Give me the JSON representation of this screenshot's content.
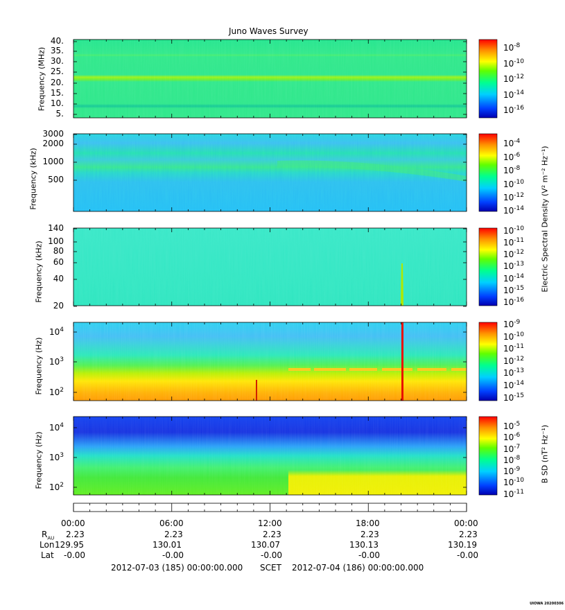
{
  "chart_data": {
    "type": "heatmap",
    "title": "Juno Waves Survey",
    "x_axis": {
      "ticks": [
        "00:00",
        "06:00",
        "12:00",
        "18:00",
        "00:00"
      ],
      "range": [
        "2012-07-03 00:00",
        "2012-07-04 00:00"
      ],
      "ephemeris": [
        {
          "label": "R_AU",
          "values": [
            "2.23",
            "2.23",
            "2.23",
            "2.23",
            "2.23"
          ]
        },
        {
          "label": "Lon",
          "values": [
            "129.95",
            "130.01",
            "130.07",
            "130.13",
            "130.19"
          ]
        },
        {
          "label": "Lat",
          "values": [
            "-0.00",
            "-0.00",
            "-0.00",
            "-0.00",
            "-0.00"
          ]
        }
      ],
      "start": "2012-07-03 (185) 00:00:00.000",
      "scet": "SCET",
      "end": "2012-07-04 (186) 00:00:00.000"
    },
    "panels": [
      {
        "ylabel": "Frequency (MHz)",
        "yticks": [
          "40.",
          "35.",
          "30.",
          "25.",
          "20.",
          "15.",
          "10.",
          "5."
        ],
        "cbar_exponents": [
          "-8",
          "-10",
          "-12",
          "-14",
          "-16"
        ]
      },
      {
        "ylabel": "Frequency (kHz)",
        "yticks": [
          "3000",
          "2000",
          "1000",
          "500"
        ],
        "cbar_exponents": [
          "-4",
          "-6",
          "-8",
          "-10",
          "-12",
          "-14"
        ]
      },
      {
        "ylabel": "Frequency (kHz)",
        "yticks": [
          "140",
          "100",
          "80",
          "60",
          "40",
          "20"
        ],
        "cbar_exponents": [
          "-10",
          "-11",
          "-12",
          "-13",
          "-14",
          "-15",
          "-16"
        ]
      },
      {
        "ylabel": "Frequency (Hz)",
        "yticks_exp": [
          "4",
          "3",
          "2"
        ],
        "cbar_exponents": [
          "-9",
          "-10",
          "-11",
          "-12",
          "-13",
          "-14",
          "-15"
        ]
      },
      {
        "ylabel": "Frequency (Hz)",
        "yticks_exp": [
          "4",
          "3",
          "2"
        ],
        "cbar_exponents": [
          "-5",
          "-6",
          "-7",
          "-8",
          "-9",
          "-10",
          "-11"
        ]
      }
    ],
    "colorbar_labels": {
      "electric": "Electric Spectral Density (V² m⁻² Hz⁻¹)",
      "magnetic": "B SD (nT² Hz⁻¹)"
    },
    "colormap": [
      "#0000c0",
      "#0050ff",
      "#00c0ff",
      "#00ff80",
      "#80ff00",
      "#ffff00",
      "#ff8000",
      "#ff0000"
    ]
  },
  "labels": {
    "r_au_main": "R",
    "r_au_sub": "AU",
    "lon": "Lon",
    "lat": "Lat"
  },
  "credit": "UIOWA 20200306"
}
